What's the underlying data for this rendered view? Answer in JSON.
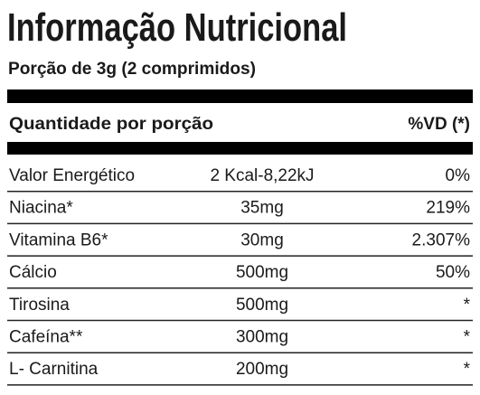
{
  "header": {
    "title": "Informação Nutricional",
    "serving": "Porção de 3g (2 comprimidos)"
  },
  "table": {
    "columns": [
      "Quantidade por porção",
      "%VD (*)"
    ],
    "rows": [
      [
        "Valor Energético",
        "2 Kcal-8,22kJ",
        "0%"
      ],
      [
        "Niacina*",
        "35mg",
        "219%"
      ],
      [
        "Vitamina B6*",
        "30mg",
        "2.307%"
      ],
      [
        "Cálcio",
        "500mg",
        "50%"
      ],
      [
        "Tirosina",
        "500mg",
        "*"
      ],
      [
        "Cafeína**",
        "300mg",
        "*"
      ],
      [
        "L- Carnitina",
        "200mg",
        "*"
      ]
    ]
  }
}
